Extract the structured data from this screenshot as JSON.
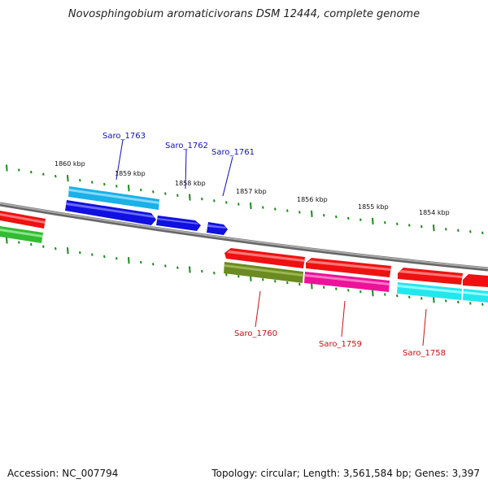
{
  "title": "Novosphingobium aromaticivorans DSM 12444, complete genome",
  "footer": {
    "accession": "Accession: NC_007794",
    "summary": "Topology: circular; Length: 3,561,584 bp; Genes: 3,397"
  },
  "scale_labels": [
    "1860 kbp",
    "1859 kbp",
    "1858 kbp",
    "1857 kbp",
    "1856 kbp",
    "1855 kbp",
    "1854 kbp"
  ],
  "gene_labels": [
    {
      "name": "Saro_1763",
      "strand": "forward"
    },
    {
      "name": "Saro_1762",
      "strand": "forward"
    },
    {
      "name": "Saro_1761",
      "strand": "forward"
    },
    {
      "name": "Saro_1760",
      "strand": "reverse"
    },
    {
      "name": "Saro_1759",
      "strand": "reverse"
    },
    {
      "name": "Saro_1758",
      "strand": "reverse"
    }
  ],
  "colors": {
    "forward_label": "#1010c0",
    "reverse_label": "#cc1010",
    "backbone": "#888888",
    "ticks": "#1a8a1a",
    "cds_red": "#ee1111",
    "cds_blue": "#1010e0",
    "cds_lightblue": "#1ab0e8",
    "cds_green": "#33bb33",
    "cds_olive": "#6b8a1f",
    "cds_magenta": "#ee1199",
    "cds_cyan": "#22e8ee"
  }
}
